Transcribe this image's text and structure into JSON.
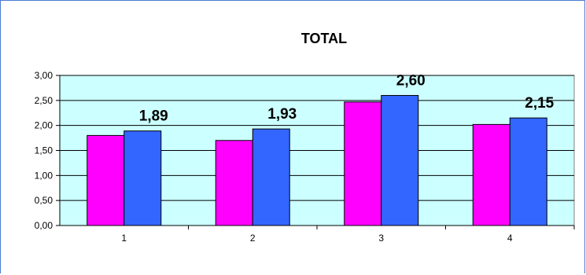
{
  "chart_data": {
    "type": "bar",
    "title": "TOTAL",
    "categories": [
      "1",
      "2",
      "3",
      "4"
    ],
    "series": [
      {
        "values": [
          1.8,
          1.7,
          2.47,
          2.02
        ],
        "color": "#ff00ff"
      },
      {
        "values": [
          1.89,
          1.93,
          2.6,
          2.15
        ],
        "color": "#3366ff",
        "data_labels": [
          "1,89",
          "1,93",
          "2,60",
          "2,15"
        ]
      }
    ],
    "ylim": [
      0,
      3
    ],
    "yticks": [
      "0,00",
      "0,50",
      "1,00",
      "1,50",
      "2,00",
      "2,50",
      "3,00"
    ],
    "plot_background": "#ccffff",
    "grid": true,
    "legend": "none"
  }
}
